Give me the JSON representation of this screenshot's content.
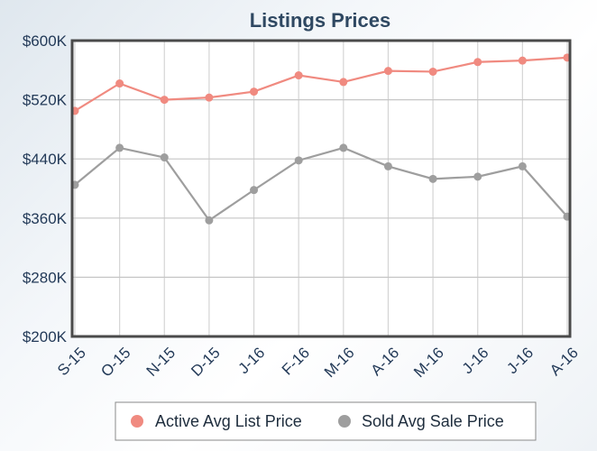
{
  "chart_data": {
    "type": "line",
    "title": "Listings Prices",
    "categories": [
      "S-15",
      "O-15",
      "N-15",
      "D-15",
      "J-16",
      "F-16",
      "M-16",
      "A-16",
      "M-16",
      "J-16",
      "J-16",
      "A-16"
    ],
    "ylim": [
      200000,
      600000
    ],
    "yticks": [
      200000,
      280000,
      360000,
      440000,
      520000,
      600000
    ],
    "ytick_labels": [
      "$200K",
      "$280K",
      "$360K",
      "$440K",
      "$520K",
      "$600K"
    ],
    "grid": true,
    "legend_position": "bottom",
    "series": [
      {
        "name": "Active Avg List Price",
        "color": "#f08a80",
        "values": [
          505000,
          542000,
          520000,
          523000,
          531000,
          553000,
          544000,
          559000,
          558000,
          571000,
          573000,
          577000
        ]
      },
      {
        "name": "Sold Avg Sale Price",
        "color": "#9e9e9e",
        "values": [
          405000,
          455000,
          442000,
          357000,
          398000,
          438000,
          455000,
          430000,
          413000,
          416000,
          430000,
          362000
        ]
      }
    ]
  }
}
